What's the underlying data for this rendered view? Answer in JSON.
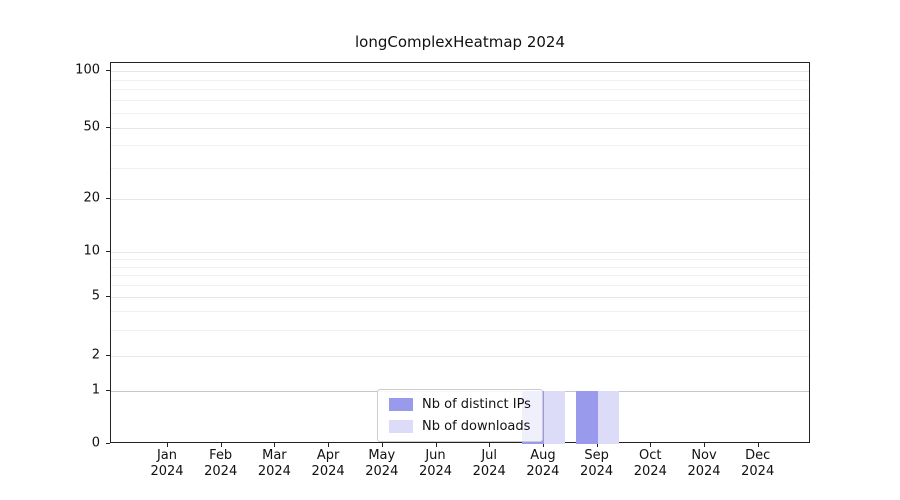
{
  "chart_data": {
    "type": "bar",
    "title": "longComplexHeatmap 2024",
    "categories": [
      "Jan",
      "Feb",
      "Mar",
      "Apr",
      "May",
      "Jun",
      "Jul",
      "Aug",
      "Sep",
      "Oct",
      "Nov",
      "Dec"
    ],
    "x_year": "2024",
    "series": [
      {
        "name": "Nb of distinct IPs",
        "color": "#9a9aec",
        "values": [
          0,
          0,
          0,
          0,
          0,
          0,
          0,
          1,
          1,
          0,
          0,
          0
        ]
      },
      {
        "name": "Nb of downloads",
        "color": "#dcdcf9",
        "values": [
          0,
          0,
          0,
          0,
          0,
          0,
          0,
          1,
          1,
          0,
          0,
          0
        ]
      }
    ],
    "y_scale": "symlog",
    "y_ticks": [
      0,
      1,
      2,
      5,
      10,
      20,
      50,
      100
    ],
    "y_minor_ticks": [
      3,
      4,
      6,
      7,
      8,
      9,
      30,
      40,
      60,
      70,
      80,
      90
    ],
    "ylim": [
      0,
      110
    ],
    "grid": true,
    "legend_position": "lower center"
  }
}
